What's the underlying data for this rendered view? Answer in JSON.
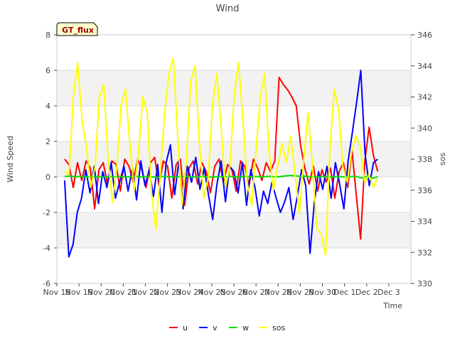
{
  "chart_data": {
    "type": "line",
    "title": "Wind",
    "xlabel": "Time",
    "ylabel": "Wind Speed",
    "y2label": "sos",
    "badge": "GT_flux",
    "xlim": [
      0,
      16
    ],
    "ylim": [
      -6,
      8
    ],
    "y2lim": [
      330,
      346
    ],
    "x_ticks": [
      {
        "value": 0,
        "label": "Nov 18"
      },
      {
        "value": 1,
        "label": "Nov 19"
      },
      {
        "value": 2,
        "label": "Nov 20"
      },
      {
        "value": 3,
        "label": "Nov 21"
      },
      {
        "value": 4,
        "label": "Nov 22"
      },
      {
        "value": 5,
        "label": "Nov 23"
      },
      {
        "value": 6,
        "label": "Nov 24"
      },
      {
        "value": 7,
        "label": "Nov 25"
      },
      {
        "value": 8,
        "label": "Nov 26"
      },
      {
        "value": 9,
        "label": "Nov 27"
      },
      {
        "value": 10,
        "label": "Nov 28"
      },
      {
        "value": 11,
        "label": "Nov 29"
      },
      {
        "value": 12,
        "label": "Nov 30"
      },
      {
        "value": 13,
        "label": "Dec 1"
      },
      {
        "value": 14,
        "label": "Dec 2"
      },
      {
        "value": 15,
        "label": "Dec 3"
      }
    ],
    "y_ticks": [
      -6,
      -4,
      -2,
      0,
      2,
      4,
      6,
      8
    ],
    "y2_ticks": [
      330,
      332,
      334,
      336,
      338,
      340,
      342,
      344,
      346
    ],
    "legend": {
      "position": "bottom-center"
    },
    "series": [
      {
        "name": "u",
        "color": "#ff0000",
        "axis": "left",
        "x_range": [
          0.35,
          14.5
        ],
        "values": [
          1.0,
          0.7,
          -0.6,
          0.8,
          -0.2,
          0.9,
          0.5,
          -1.8,
          0.4,
          0.8,
          -0.4,
          0.9,
          0.7,
          -0.8,
          1.0,
          0.6,
          -0.3,
          1.0,
          0.4,
          -0.6,
          0.8,
          1.1,
          -0.5,
          0.9,
          0.6,
          -1.2,
          0.7,
          1.0,
          -1.6,
          0.5,
          0.9,
          -0.4,
          0.8,
          0.3,
          -0.9,
          0.6,
          1.0,
          -0.3,
          0.7,
          0.4,
          -0.8,
          0.9,
          0.6,
          -0.5,
          1.0,
          0.5,
          -0.2,
          0.8,
          0.3,
          0.9,
          5.6,
          5.2,
          4.9,
          4.5,
          4.0,
          1.8,
          0.5,
          -0.4,
          0.6,
          -0.8,
          0.4,
          -0.3,
          0.5,
          -1.2,
          0.3,
          0.8,
          -0.6,
          1.5,
          -1.0,
          -3.5,
          0.9,
          2.8,
          1.2,
          0.3
        ]
      },
      {
        "name": "v",
        "color": "#0000ff",
        "axis": "left",
        "x_range": [
          0.35,
          14.5
        ],
        "values": [
          -0.2,
          -4.5,
          -3.8,
          -2.0,
          -1.2,
          0.4,
          -0.9,
          0.6,
          -1.5,
          0.3,
          -0.6,
          0.8,
          -1.2,
          -0.3,
          0.6,
          -0.8,
          0.5,
          -1.3,
          0.9,
          -0.5,
          0.4,
          -1.1,
          0.7,
          -2.0,
          0.8,
          1.8,
          -1.0,
          0.9,
          -1.8,
          0.6,
          -0.3,
          1.1,
          -0.7,
          0.5,
          -1.0,
          -2.4,
          -0.4,
          0.9,
          -1.4,
          0.6,
          0.3,
          -0.9,
          0.8,
          -1.6,
          0.4,
          -0.6,
          -2.2,
          -0.8,
          -1.5,
          -0.3,
          -1.2,
          -2.0,
          -1.4,
          -0.6,
          -2.4,
          -1.1,
          0.4,
          -0.5,
          -4.3,
          -1.5,
          0.3,
          -0.7,
          0.6,
          -1.2,
          0.8,
          -0.4,
          -1.8,
          0.9,
          2.5,
          4.2,
          6.0,
          1.3,
          -0.5,
          0.8,
          1.0
        ]
      },
      {
        "name": "w",
        "color": "#00e000",
        "axis": "left",
        "x_range": [
          0.35,
          14.5
        ],
        "values": [
          0.02,
          0.05,
          0.0,
          0.03,
          -0.02,
          0.04,
          0.01,
          -0.03,
          0.02,
          0.0,
          0.03,
          -0.02,
          0.01,
          0.04,
          -0.01,
          0.02,
          0.0,
          -0.03,
          0.03,
          0.01,
          -0.02,
          0.02,
          0.04,
          0.0,
          -0.01,
          0.03,
          0.01,
          -0.02,
          0.02,
          0.0,
          0.03,
          0.01,
          -0.02,
          0.04,
          0.0,
          0.02,
          -0.01,
          0.03,
          0.01,
          0.0,
          0.05,
          0.08,
          0.06,
          0.03,
          0.04,
          -0.02,
          0.01,
          0.02,
          -0.03,
          0.0,
          0.02,
          -0.01,
          0.01,
          0.03,
          -0.06,
          0.02,
          -0.08,
          0.01
        ]
      },
      {
        "name": "sos",
        "color": "#ffff00",
        "axis": "right",
        "x_range": [
          0.35,
          14.5
        ],
        "values": [
          337.2,
          337.0,
          342.0,
          344.2,
          340.5,
          338.8,
          336.2,
          337.5,
          342.0,
          342.8,
          338.0,
          335.2,
          337.5,
          341.5,
          342.5,
          339.0,
          336.0,
          338.5,
          342.0,
          341.0,
          335.8,
          333.5,
          337.0,
          341.0,
          343.5,
          344.5,
          339.5,
          335.0,
          338.0,
          343.0,
          344.0,
          339.0,
          335.5,
          336.8,
          341.5,
          343.5,
          340.0,
          336.2,
          337.5,
          342.2,
          344.2,
          340.5,
          336.5,
          335.0,
          338.5,
          342.0,
          343.5,
          338.5,
          336.0,
          337.5,
          339.0,
          337.8,
          339.5,
          337.0,
          334.5,
          338.0,
          341.0,
          337.5,
          333.5,
          333.2,
          331.8,
          338.5,
          342.5,
          341.2,
          337.5,
          336.5,
          338.5,
          339.5,
          338.8,
          336.5,
          337.0,
          336.2,
          336.8
        ]
      }
    ]
  }
}
